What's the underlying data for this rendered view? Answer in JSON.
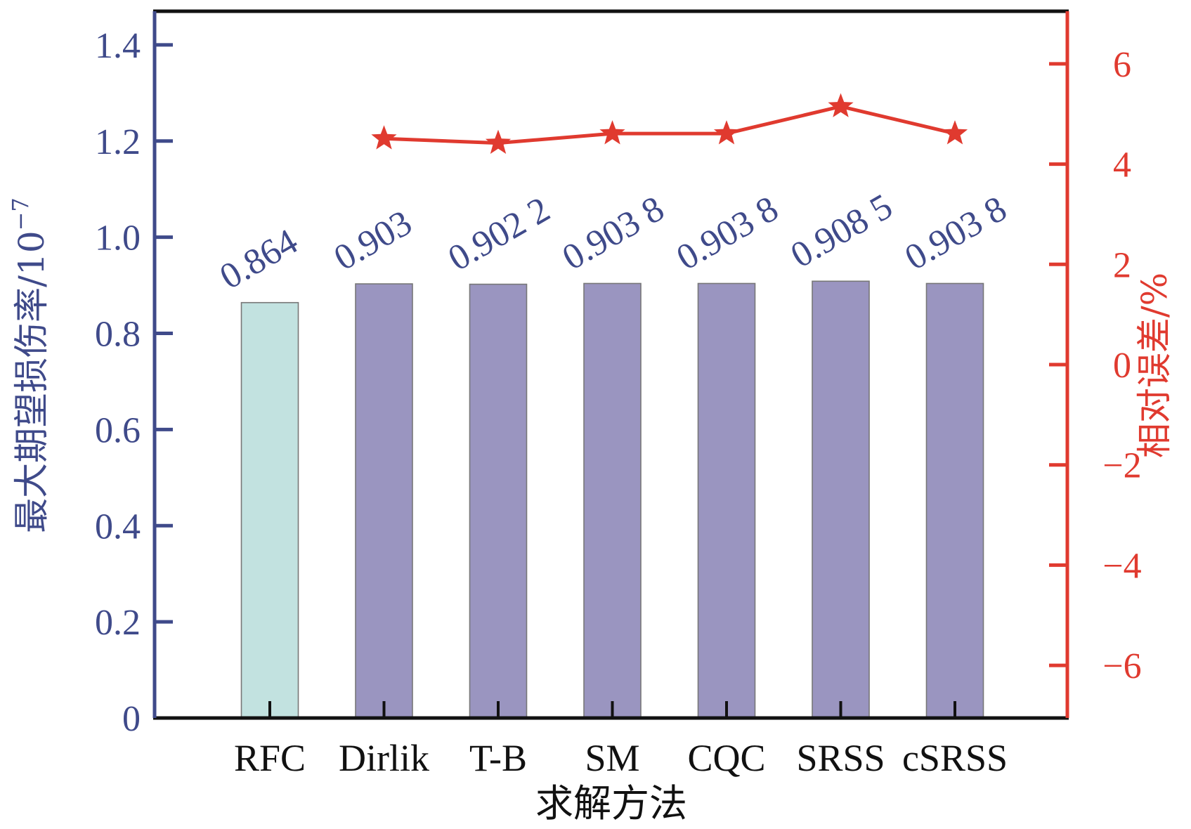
{
  "chart_data": {
    "type": "bar",
    "title": "",
    "xlabel": "求解方法",
    "ylabel": "最大期望损伤率/10",
    "ylabel_exponent": "−7",
    "y2label": "相对误差/%",
    "categories": [
      "RFC",
      "Dirlik",
      "T-B",
      "SM",
      "CQC",
      "SRSS",
      "cSRSS"
    ],
    "series": [
      {
        "name": "最大期望损伤率",
        "type": "bar",
        "axis": "left",
        "values": [
          0.864,
          0.903,
          0.9022,
          0.9038,
          0.9038,
          0.9085,
          0.9038
        ],
        "labels": [
          "0.864",
          "0.903",
          "0.902 2",
          "0.903 8",
          "0.903 8",
          "0.908 5",
          "0.903 8"
        ],
        "colors": [
          "#C2E2E0",
          "#9A95C0",
          "#9A95C0",
          "#9A95C0",
          "#9A95C0",
          "#9A95C0",
          "#9A95C0"
        ]
      },
      {
        "name": "相对误差",
        "type": "line",
        "axis": "right",
        "marker": "star",
        "categories": [
          "Dirlik",
          "T-B",
          "SM",
          "CQC",
          "SRSS",
          "cSRSS"
        ],
        "values": [
          4.51,
          4.42,
          4.61,
          4.61,
          5.15,
          4.61
        ],
        "color": "#E03A2F"
      }
    ],
    "ylim": [
      0,
      1.47
    ],
    "yticks": [
      0,
      0.2,
      0.4,
      0.6,
      0.8,
      1.0,
      1.2,
      1.4
    ],
    "ytick_labels": [
      "0",
      "0.2",
      "0.4",
      "0.6",
      "0.8",
      "1.0",
      "1.2",
      "1.4"
    ],
    "y2lim": [
      -7.05,
      7.05
    ],
    "y2ticks": [
      -6,
      -4,
      -2,
      0,
      2,
      4,
      6
    ],
    "y2tick_labels": [
      "−6",
      "−4",
      "−2",
      "0",
      "2",
      "4",
      "6"
    ],
    "grid": false,
    "legend": "none",
    "colors": {
      "left_axis": "#3F4A8A",
      "right_axis": "#E03A2F",
      "frame": "#111111",
      "bar_edge": "#777777"
    }
  }
}
